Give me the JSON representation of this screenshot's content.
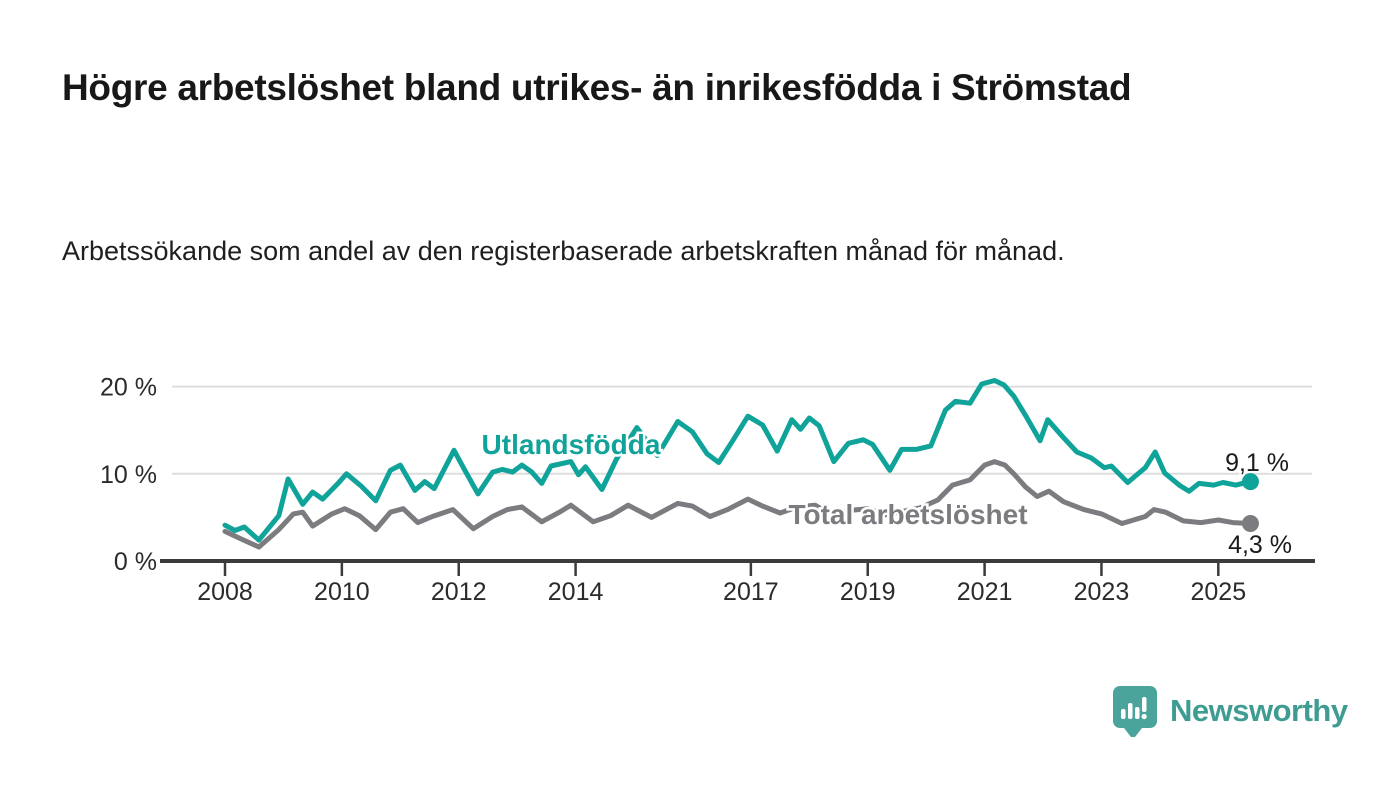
{
  "page": {
    "title": "Högre arbetslöshet bland utrikes- än inrikesfödda i Strömstad",
    "subtitle": "Arbetssökande som andel av den registerbaserade arbetskraften månad för månad.",
    "background_color": "#ffffff",
    "text_color": "#1f1f1f"
  },
  "footer": {
    "brand": "Newsworthy",
    "brand_color": "#3f9c93",
    "logo_icon": "bar-chart-speech-bubble-icon"
  },
  "chart_data": {
    "type": "line",
    "title": "Högre arbetslöshet bland utrikes- än inrikesfödda i Strömstad",
    "subtitle": "Arbetssökande som andel av den registerbaserade arbetskraften månad för månad.",
    "unit": "%",
    "grid": true,
    "legend_position": "inline-labels",
    "x_axis": {
      "ticks": [
        2008,
        2010,
        2012,
        2014,
        2017,
        2019,
        2021,
        2023,
        2025
      ],
      "range": [
        2007.9,
        2026.3
      ]
    },
    "y_axis": {
      "ticks": [
        0,
        10,
        20
      ],
      "tick_labels": [
        "0 %",
        "10 %",
        "20 %"
      ],
      "range": [
        0,
        21.5
      ]
    },
    "colors": {
      "axis": "#3b3b3b",
      "grid": "#dddddd",
      "tick_text": "#2b2b2b",
      "value_label_text": "#1a1a1a"
    },
    "series": [
      {
        "name": "Total arbetslöshet",
        "color": "#7b7b80",
        "end_value": 4.3,
        "end_label": "4,3 %",
        "points": [
          [
            2008.0,
            3.4
          ],
          [
            2008.25,
            2.6
          ],
          [
            2008.58,
            1.6
          ],
          [
            2008.92,
            3.6
          ],
          [
            2009.17,
            5.4
          ],
          [
            2009.33,
            5.6
          ],
          [
            2009.5,
            4.0
          ],
          [
            2009.83,
            5.4
          ],
          [
            2010.05,
            6.0
          ],
          [
            2010.3,
            5.2
          ],
          [
            2010.58,
            3.6
          ],
          [
            2010.83,
            5.6
          ],
          [
            2011.05,
            6.0
          ],
          [
            2011.3,
            4.4
          ],
          [
            2011.55,
            5.1
          ],
          [
            2011.9,
            5.9
          ],
          [
            2012.25,
            3.7
          ],
          [
            2012.58,
            5.1
          ],
          [
            2012.83,
            5.9
          ],
          [
            2013.08,
            6.2
          ],
          [
            2013.42,
            4.5
          ],
          [
            2013.75,
            5.7
          ],
          [
            2013.92,
            6.4
          ],
          [
            2014.3,
            4.5
          ],
          [
            2014.6,
            5.2
          ],
          [
            2014.9,
            6.4
          ],
          [
            2015.3,
            5.0
          ],
          [
            2015.75,
            6.6
          ],
          [
            2016.0,
            6.3
          ],
          [
            2016.3,
            5.1
          ],
          [
            2016.6,
            5.9
          ],
          [
            2016.95,
            7.1
          ],
          [
            2017.2,
            6.3
          ],
          [
            2017.5,
            5.5
          ],
          [
            2017.8,
            6.2
          ],
          [
            2018.1,
            6.4
          ],
          [
            2018.4,
            5.2
          ],
          [
            2018.7,
            5.8
          ],
          [
            2019.0,
            6.0
          ],
          [
            2019.3,
            5.3
          ],
          [
            2019.6,
            5.7
          ],
          [
            2019.9,
            6.1
          ],
          [
            2020.2,
            7.0
          ],
          [
            2020.45,
            8.7
          ],
          [
            2020.75,
            9.3
          ],
          [
            2021.0,
            11.0
          ],
          [
            2021.17,
            11.4
          ],
          [
            2021.35,
            11.0
          ],
          [
            2021.5,
            10.0
          ],
          [
            2021.7,
            8.5
          ],
          [
            2021.9,
            7.4
          ],
          [
            2022.1,
            8.0
          ],
          [
            2022.35,
            6.8
          ],
          [
            2022.7,
            5.9
          ],
          [
            2023.0,
            5.4
          ],
          [
            2023.35,
            4.3
          ],
          [
            2023.75,
            5.1
          ],
          [
            2023.9,
            5.9
          ],
          [
            2024.1,
            5.6
          ],
          [
            2024.4,
            4.6
          ],
          [
            2024.7,
            4.4
          ],
          [
            2025.0,
            4.7
          ],
          [
            2025.25,
            4.4
          ],
          [
            2025.55,
            4.3
          ]
        ]
      },
      {
        "name": "Utlandsfödda",
        "color": "#10a39a",
        "end_value": 9.1,
        "end_label": "9,1 %",
        "points": [
          [
            2008.0,
            4.1
          ],
          [
            2008.17,
            3.5
          ],
          [
            2008.33,
            3.9
          ],
          [
            2008.58,
            2.4
          ],
          [
            2008.92,
            5.2
          ],
          [
            2009.08,
            9.4
          ],
          [
            2009.33,
            6.5
          ],
          [
            2009.5,
            7.9
          ],
          [
            2009.67,
            7.1
          ],
          [
            2009.92,
            8.8
          ],
          [
            2010.08,
            10.0
          ],
          [
            2010.33,
            8.6
          ],
          [
            2010.58,
            6.9
          ],
          [
            2010.83,
            10.4
          ],
          [
            2011.0,
            11.0
          ],
          [
            2011.25,
            8.1
          ],
          [
            2011.42,
            9.1
          ],
          [
            2011.58,
            8.3
          ],
          [
            2011.92,
            12.7
          ],
          [
            2012.08,
            10.7
          ],
          [
            2012.33,
            7.7
          ],
          [
            2012.58,
            10.2
          ],
          [
            2012.75,
            10.5
          ],
          [
            2012.92,
            10.2
          ],
          [
            2013.08,
            11.0
          ],
          [
            2013.25,
            10.2
          ],
          [
            2013.42,
            8.9
          ],
          [
            2013.58,
            10.9
          ],
          [
            2013.92,
            11.4
          ],
          [
            2014.05,
            9.9
          ],
          [
            2014.17,
            10.8
          ],
          [
            2014.45,
            8.2
          ],
          [
            2014.7,
            11.7
          ],
          [
            2015.05,
            15.3
          ],
          [
            2015.4,
            12.1
          ],
          [
            2015.75,
            16.0
          ],
          [
            2016.0,
            14.8
          ],
          [
            2016.25,
            12.3
          ],
          [
            2016.45,
            11.3
          ],
          [
            2016.7,
            13.9
          ],
          [
            2016.95,
            16.6
          ],
          [
            2017.2,
            15.6
          ],
          [
            2017.45,
            12.6
          ],
          [
            2017.7,
            16.2
          ],
          [
            2017.85,
            15.1
          ],
          [
            2018.0,
            16.4
          ],
          [
            2018.17,
            15.5
          ],
          [
            2018.42,
            11.4
          ],
          [
            2018.67,
            13.5
          ],
          [
            2018.92,
            13.9
          ],
          [
            2019.08,
            13.4
          ],
          [
            2019.38,
            10.4
          ],
          [
            2019.58,
            12.8
          ],
          [
            2019.83,
            12.8
          ],
          [
            2020.08,
            13.2
          ],
          [
            2020.33,
            17.3
          ],
          [
            2020.5,
            18.3
          ],
          [
            2020.75,
            18.1
          ],
          [
            2020.95,
            20.3
          ],
          [
            2021.17,
            20.7
          ],
          [
            2021.33,
            20.2
          ],
          [
            2021.5,
            18.9
          ],
          [
            2021.7,
            16.7
          ],
          [
            2021.95,
            13.8
          ],
          [
            2022.08,
            16.2
          ],
          [
            2022.33,
            14.3
          ],
          [
            2022.58,
            12.5
          ],
          [
            2022.83,
            11.8
          ],
          [
            2023.05,
            10.7
          ],
          [
            2023.17,
            10.9
          ],
          [
            2023.45,
            9.0
          ],
          [
            2023.75,
            10.7
          ],
          [
            2023.92,
            12.5
          ],
          [
            2024.08,
            10.1
          ],
          [
            2024.33,
            8.7
          ],
          [
            2024.5,
            8.0
          ],
          [
            2024.67,
            8.9
          ],
          [
            2024.92,
            8.7
          ],
          [
            2025.08,
            9.0
          ],
          [
            2025.3,
            8.7
          ],
          [
            2025.55,
            9.1
          ]
        ]
      }
    ]
  }
}
